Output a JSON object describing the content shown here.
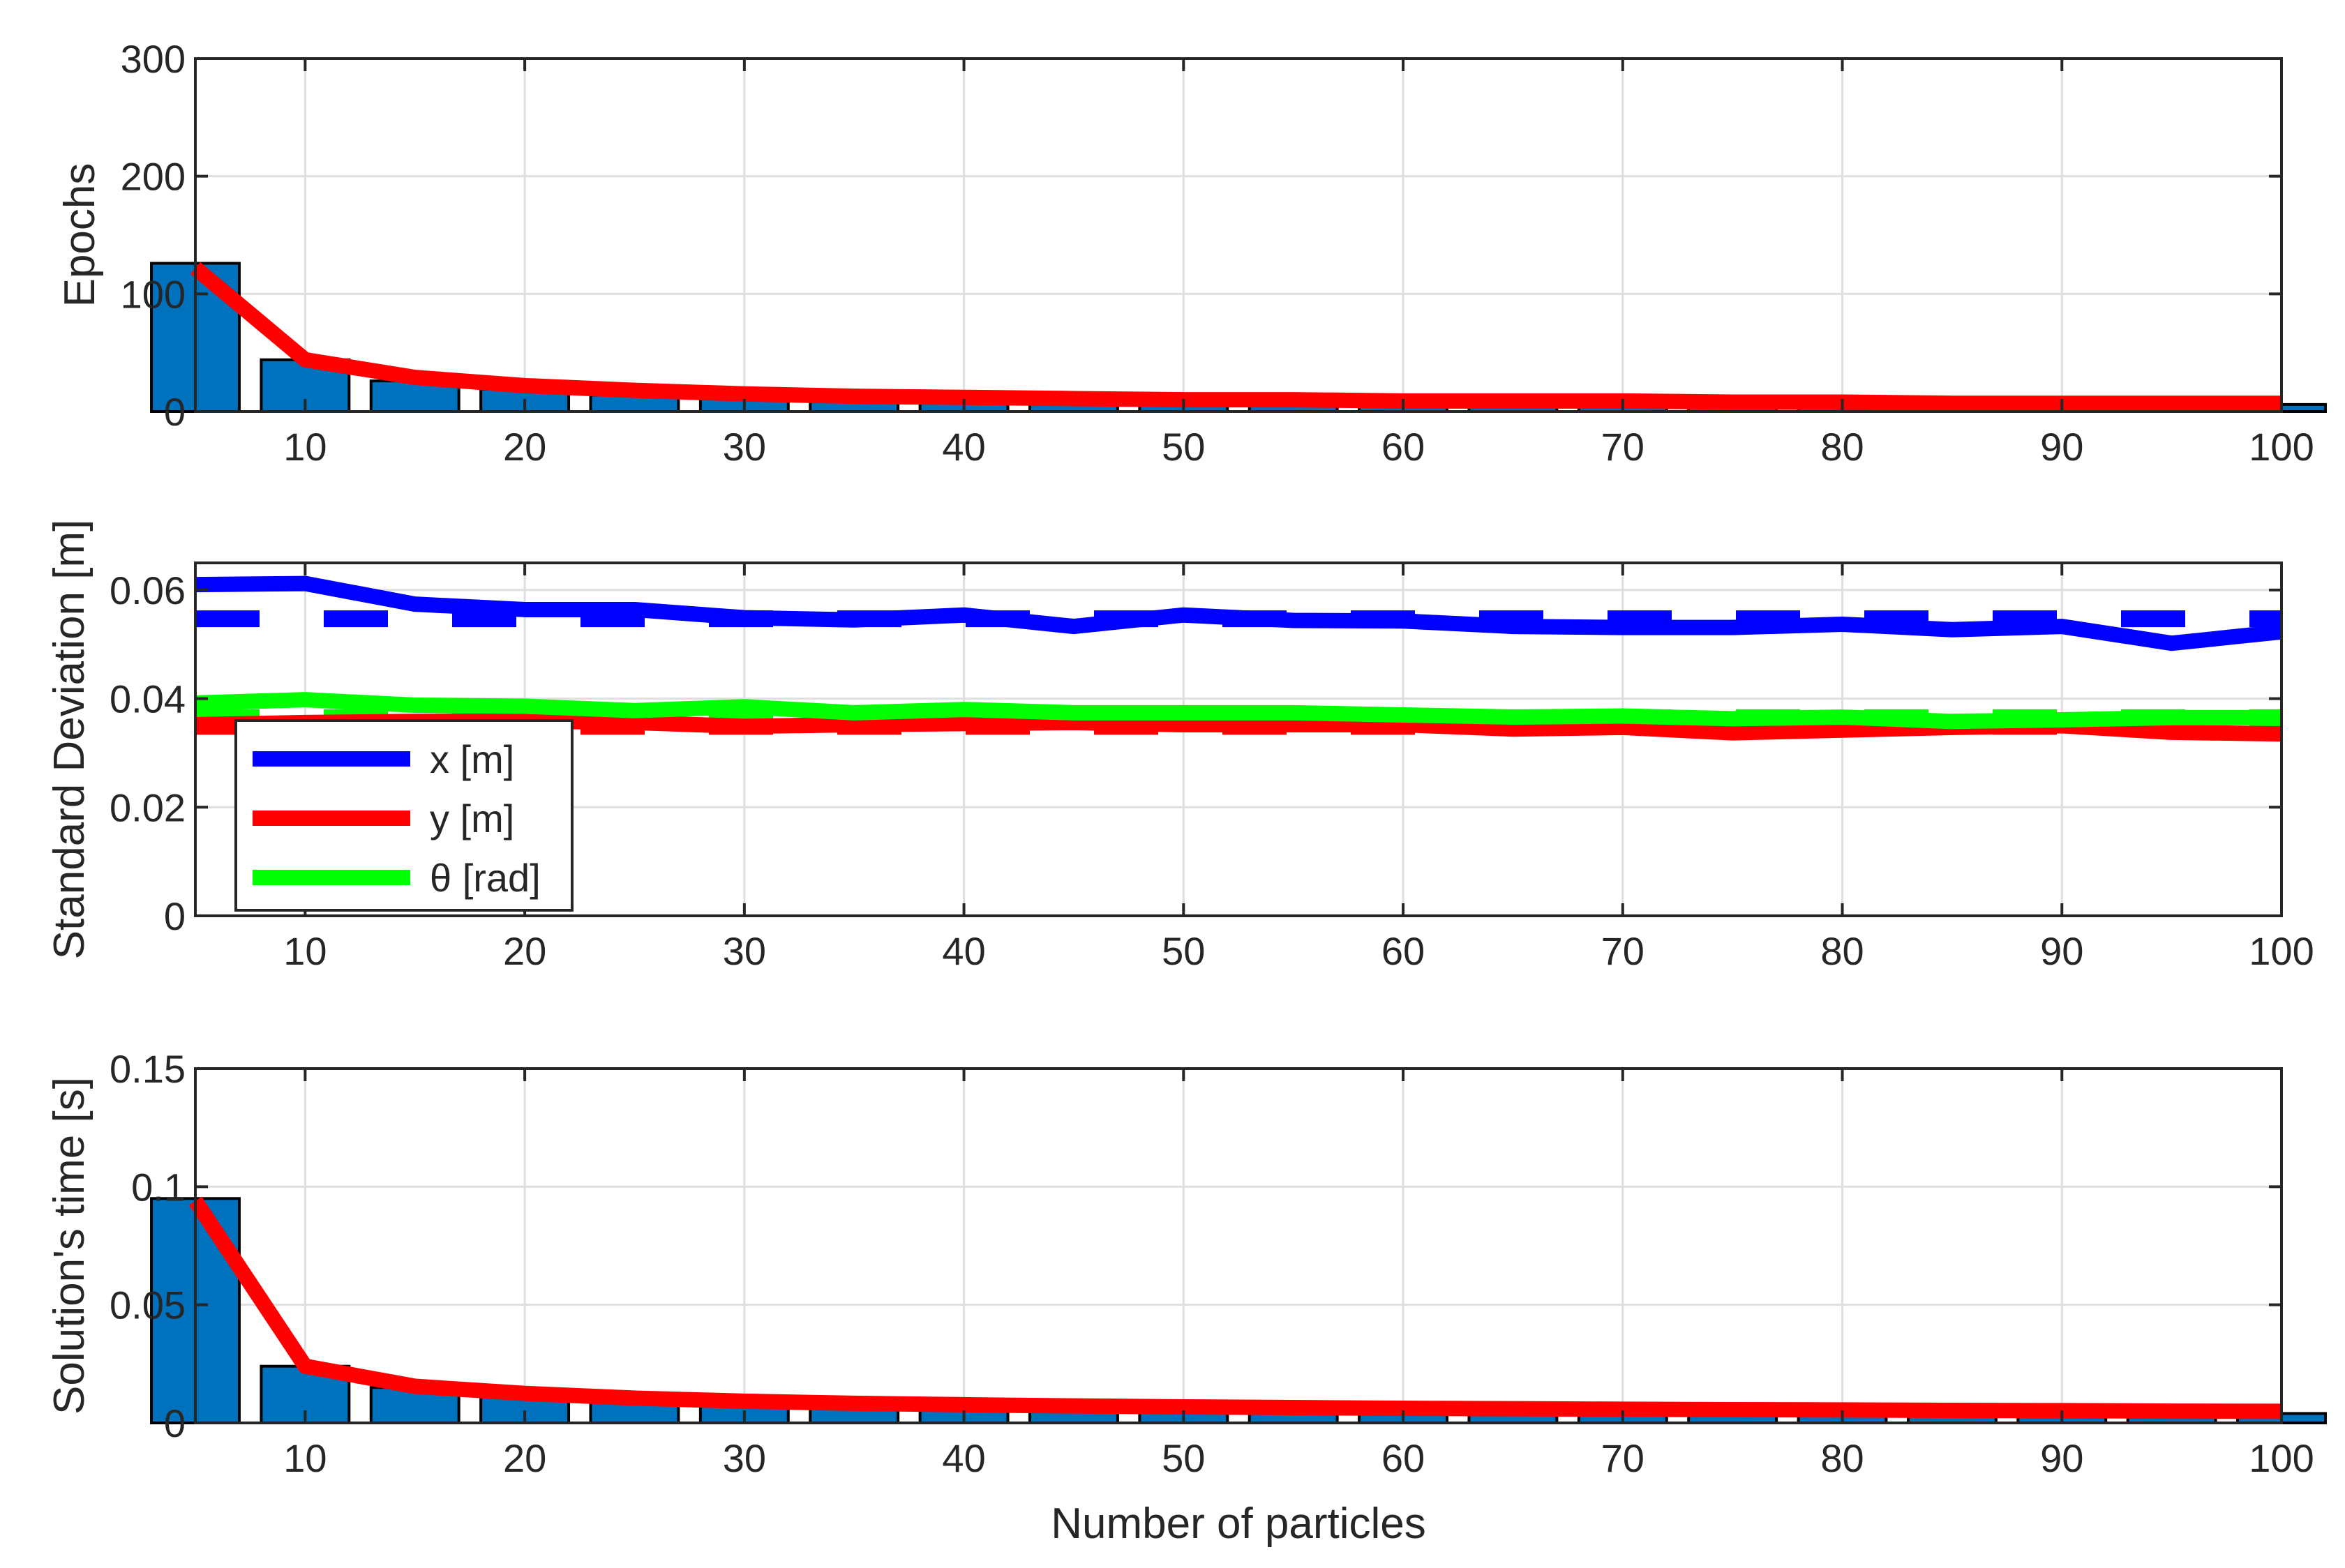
{
  "figure": {
    "xlabel": "Number of particles"
  },
  "chart_data": [
    {
      "type": "bar",
      "ylabel": "Epochs",
      "xlim": [
        5,
        100
      ],
      "ylim": [
        0,
        300
      ],
      "xticks": [
        "10",
        "20",
        "30",
        "40",
        "50",
        "60",
        "70",
        "80",
        "90",
        "100"
      ],
      "yticks": [
        "0",
        "100",
        "200",
        "300"
      ],
      "grid": true,
      "x": [
        5,
        10,
        15,
        20,
        25,
        30,
        35,
        40,
        45,
        50,
        55,
        60,
        65,
        70,
        75,
        80,
        85,
        90,
        95,
        100
      ],
      "bars": [
        126,
        44,
        26,
        19,
        14,
        11,
        10,
        10,
        9,
        9,
        8,
        8,
        8,
        8,
        7,
        7,
        7,
        6,
        6,
        6
      ],
      "line": [
        122,
        44,
        29,
        22,
        18,
        15,
        13,
        12,
        11,
        10,
        10,
        9,
        9,
        9,
        8,
        8,
        7,
        7,
        7,
        7
      ],
      "bar_color": "#0072BD",
      "line_color": "#FF0000"
    },
    {
      "type": "line",
      "ylabel": "Standard Deviation [m]",
      "xlim": [
        5,
        100
      ],
      "ylim": [
        0,
        0.065
      ],
      "xticks": [
        "10",
        "20",
        "30",
        "40",
        "50",
        "60",
        "70",
        "80",
        "90",
        "100"
      ],
      "yticks": [
        "0",
        "0.02",
        "0.04",
        "0.06"
      ],
      "grid": true,
      "legend_position": "bottom-left",
      "x": [
        5,
        10,
        15,
        20,
        25,
        30,
        35,
        40,
        45,
        50,
        55,
        60,
        65,
        70,
        75,
        80,
        85,
        90,
        95,
        100
      ],
      "series": [
        {
          "name": "x [m]",
          "color": "#0000FF",
          "values": [
            0.061,
            0.0612,
            0.0574,
            0.0564,
            0.0564,
            0.0549,
            0.0545,
            0.0554,
            0.0533,
            0.0554,
            0.0544,
            0.0543,
            0.0533,
            0.0531,
            0.0531,
            0.0537,
            0.0527,
            0.0533,
            0.0502,
            0.0523
          ],
          "dashed_mean": 0.0547
        },
        {
          "name": "y [m]",
          "color": "#FF0000",
          "values": [
            0.0352,
            0.0356,
            0.0358,
            0.0359,
            0.0356,
            0.0349,
            0.0352,
            0.0354,
            0.0356,
            0.0352,
            0.0352,
            0.0352,
            0.0344,
            0.0347,
            0.0337,
            0.0342,
            0.0347,
            0.035,
            0.0338,
            0.0335
          ],
          "dashed_mean": 0.0349
        },
        {
          "name": "θ [rad]",
          "color": "#00FF00",
          "values": [
            0.0392,
            0.0398,
            0.0388,
            0.0386,
            0.0378,
            0.0385,
            0.0374,
            0.038,
            0.0374,
            0.0374,
            0.0374,
            0.037,
            0.0366,
            0.0368,
            0.0363,
            0.0366,
            0.0358,
            0.0361,
            0.0365,
            0.0365
          ],
          "dashed_mean": 0.0365
        }
      ]
    },
    {
      "type": "bar",
      "ylabel": "Solution's time [s]",
      "xlim": [
        5,
        100
      ],
      "ylim": [
        0,
        0.15
      ],
      "xticks": [
        "10",
        "20",
        "30",
        "40",
        "50",
        "60",
        "70",
        "80",
        "90",
        "100"
      ],
      "yticks": [
        "0",
        "0.05",
        "0.1",
        "0.15"
      ],
      "grid": true,
      "x": [
        5,
        10,
        15,
        20,
        25,
        30,
        35,
        40,
        45,
        50,
        55,
        60,
        65,
        70,
        75,
        80,
        85,
        90,
        95,
        100
      ],
      "bars": [
        0.095,
        0.024,
        0.015,
        0.012,
        0.009,
        0.008,
        0.007,
        0.007,
        0.006,
        0.006,
        0.006,
        0.006,
        0.006,
        0.005,
        0.005,
        0.005,
        0.005,
        0.005,
        0.004,
        0.004
      ],
      "line": [
        0.094,
        0.024,
        0.0155,
        0.0125,
        0.0105,
        0.0092,
        0.0083,
        0.0077,
        0.0072,
        0.0068,
        0.0065,
        0.0062,
        0.006,
        0.0058,
        0.0056,
        0.0055,
        0.0053,
        0.0052,
        0.005,
        0.0049
      ],
      "bar_color": "#0072BD",
      "line_color": "#FF0000"
    }
  ]
}
